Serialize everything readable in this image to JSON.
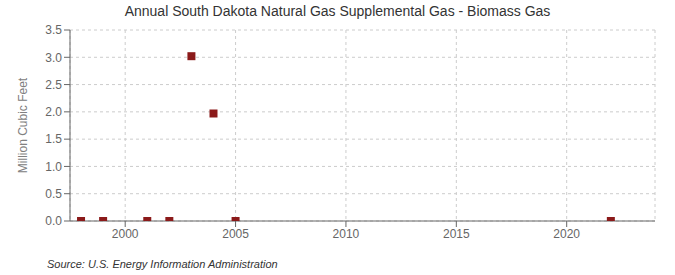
{
  "chart_data": {
    "type": "scatter",
    "title": "Annual South Dakota Natural Gas Supplemental Gas - Biomass Gas",
    "ylabel": "Million Cubic Feet",
    "annotations": [
      "Source: U.S. Energy Information Administration"
    ],
    "x": [
      1998,
      1999,
      2001,
      2002,
      2003,
      2004,
      2005,
      2022
    ],
    "values": [
      0.0,
      0.0,
      0.0,
      0.0,
      3.02,
      1.97,
      0.0,
      0.0
    ],
    "color": "#8b1a1a",
    "marker": "square",
    "xlim": [
      1997.5,
      2024
    ],
    "ylim": [
      0,
      3.5
    ],
    "xticks": [
      2000,
      2005,
      2010,
      2015,
      2020
    ],
    "yticks": [
      {
        "value": 0.0,
        "label": "0.0"
      },
      0.5,
      {
        "value": 1.0,
        "label": "1.0"
      },
      1.5,
      {
        "value": 2.0,
        "label": "2.0"
      },
      2.5,
      {
        "value": 3.0,
        "label": "3.0"
      },
      3.5
    ],
    "grid": true
  }
}
